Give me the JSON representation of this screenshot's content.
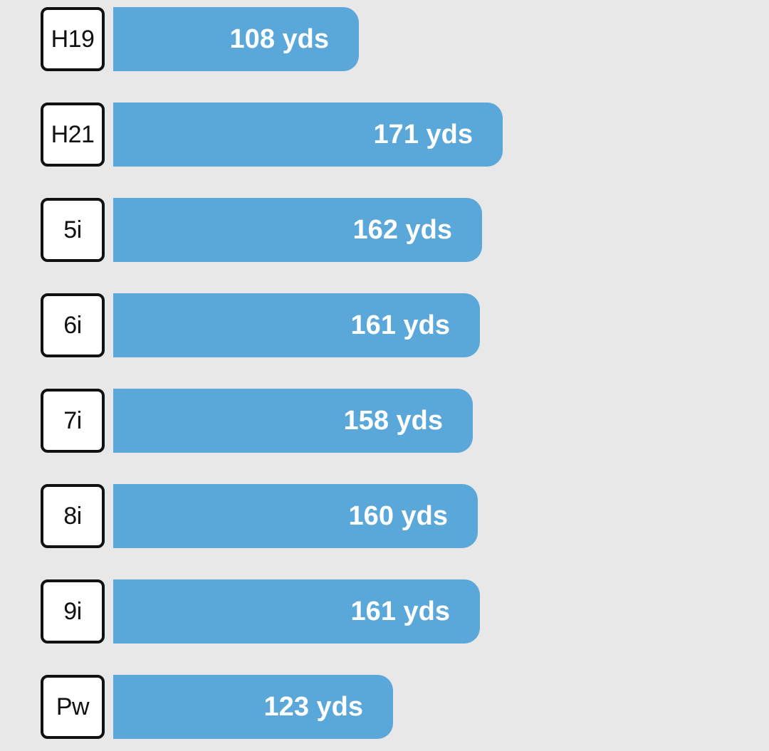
{
  "chart_data": {
    "type": "bar",
    "orientation": "horizontal",
    "categories": [
      "H19",
      "H21",
      "5i",
      "6i",
      "7i",
      "8i",
      "9i",
      "Pw"
    ],
    "values": [
      108,
      171,
      162,
      161,
      158,
      160,
      161,
      123
    ],
    "value_labels": [
      "108 yds",
      "171 yds",
      "162 yds",
      "161 yds",
      "158 yds",
      "160 yds",
      "161 yds",
      "123 yds"
    ],
    "unit": "yds",
    "title": "",
    "xlabel": "",
    "ylabel": "",
    "xlim": [
      0,
      288
    ],
    "grid": false,
    "legend": "none"
  },
  "colors": {
    "background": "#e8e8e8",
    "bar": "#5aa7da",
    "badge_border": "#111111",
    "badge_background": "#ffffff",
    "label_text": "#ffffff"
  }
}
